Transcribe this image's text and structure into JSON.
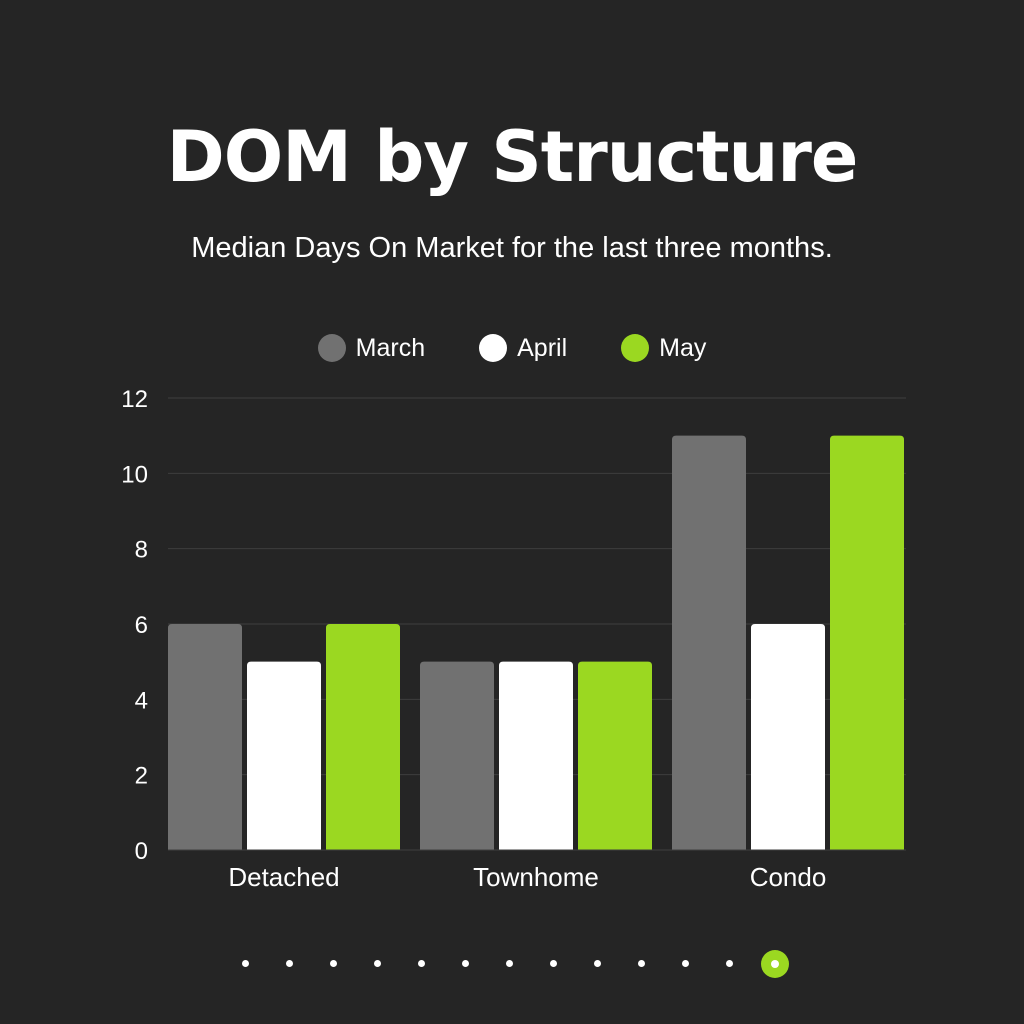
{
  "chart_data": {
    "type": "bar",
    "title": "DOM by Structure",
    "subtitle": "Median Days On Market for the last three months.",
    "categories": [
      "Detached",
      "Townhome",
      "Condo"
    ],
    "series": [
      {
        "name": "March",
        "values": [
          6,
          5,
          11
        ],
        "color": "#717171"
      },
      {
        "name": "April",
        "values": [
          5,
          5,
          6
        ],
        "color": "#ffffff"
      },
      {
        "name": "May",
        "values": [
          6,
          5,
          11
        ],
        "color": "#9bd821"
      }
    ],
    "ylim": [
      0,
      12
    ],
    "yticks": [
      "0",
      "2",
      "4",
      "6",
      "8",
      "10",
      "12"
    ],
    "xlabel": "",
    "ylabel": "",
    "grid": true,
    "legend": "top-center"
  },
  "pager": {
    "count": 13,
    "active": 12,
    "active_color": "#9bd821"
  },
  "colors": {
    "background": "#252525",
    "gridline": "#3e3e3e"
  }
}
